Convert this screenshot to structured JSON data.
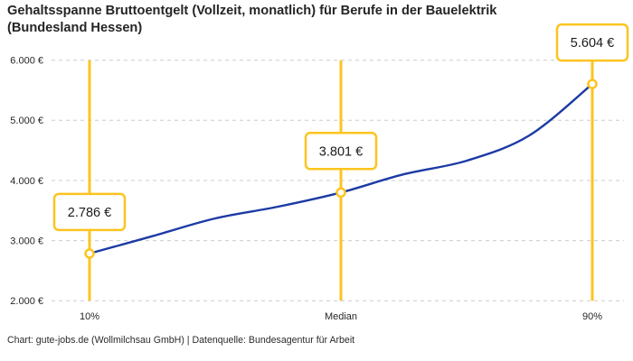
{
  "title": {
    "line1": "Gehaltsspanne Bruttoentgelt (Vollzeit, monatlich) für Berufe in der Bauelektrik",
    "line2": "(Bundesland Hessen)"
  },
  "footer": "Chart: gute-jobs.de (Wollmilchsau GmbH) | Datenquelle: Bundesagentur für Arbeit",
  "chart_data": {
    "type": "line",
    "title": "Gehaltsspanne Bruttoentgelt (Vollzeit, monatlich) für Berufe in der Bauelektrik (Bundesland Hessen)",
    "xlabel": "",
    "ylabel": "",
    "ylim": [
      2000,
      6000
    ],
    "grid": "horizontal-dashed",
    "legend": "none",
    "y_ticks": [
      {
        "value": 6000,
        "label": "6.000 €"
      },
      {
        "value": 5000,
        "label": "5.000 €"
      },
      {
        "value": 4000,
        "label": "4.000 €"
      },
      {
        "value": 3000,
        "label": "3.000 €"
      },
      {
        "value": 2000,
        "label": "2.000 €"
      }
    ],
    "markers": [
      {
        "label": "10%",
        "value": 2786,
        "display": "2.786 €",
        "position": 0
      },
      {
        "label": "Median",
        "value": 3801,
        "display": "3.801 €",
        "position": 0.5
      },
      {
        "label": "90%",
        "value": 5604,
        "display": "5.604 €",
        "position": 1
      }
    ],
    "curve_samples": [
      {
        "position": 0,
        "value": 2786
      },
      {
        "position": 0.125,
        "value": 3074
      },
      {
        "position": 0.25,
        "value": 3370
      },
      {
        "position": 0.375,
        "value": 3565
      },
      {
        "position": 0.5,
        "value": 3801
      },
      {
        "position": 0.625,
        "value": 4104
      },
      {
        "position": 0.75,
        "value": 4329
      },
      {
        "position": 0.875,
        "value": 4750
      },
      {
        "position": 1,
        "value": 5604
      }
    ],
    "colors": {
      "curve": "#1c3aa5",
      "accent": "#fcc41f",
      "grid": "#cccccc",
      "label_text": "#1a1a1a",
      "box_fill": "#ffffff"
    }
  }
}
